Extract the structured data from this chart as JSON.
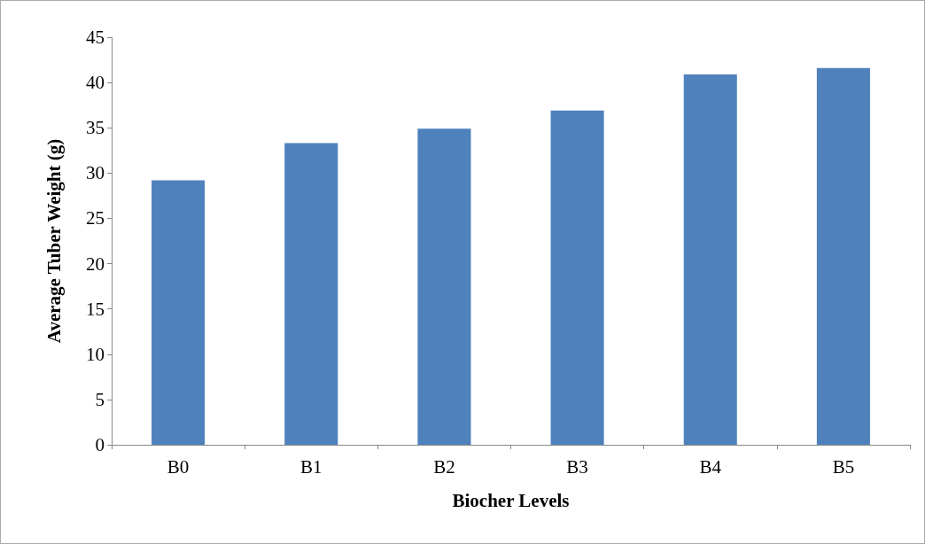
{
  "chart_data": {
    "type": "bar",
    "xlabel": "Biocher Levels",
    "ylabel": "Average Tuber Weight (g)",
    "categories": [
      "B0",
      "B1",
      "B2",
      "B3",
      "B4",
      "B5"
    ],
    "values": [
      29.2,
      33.3,
      34.9,
      36.9,
      40.9,
      41.6
    ],
    "color": "#4f81bd",
    "ylim": [
      0,
      45
    ],
    "yticks": [
      0,
      5,
      10,
      15,
      20,
      25,
      30,
      35,
      40,
      45
    ],
    "grid": false
  }
}
